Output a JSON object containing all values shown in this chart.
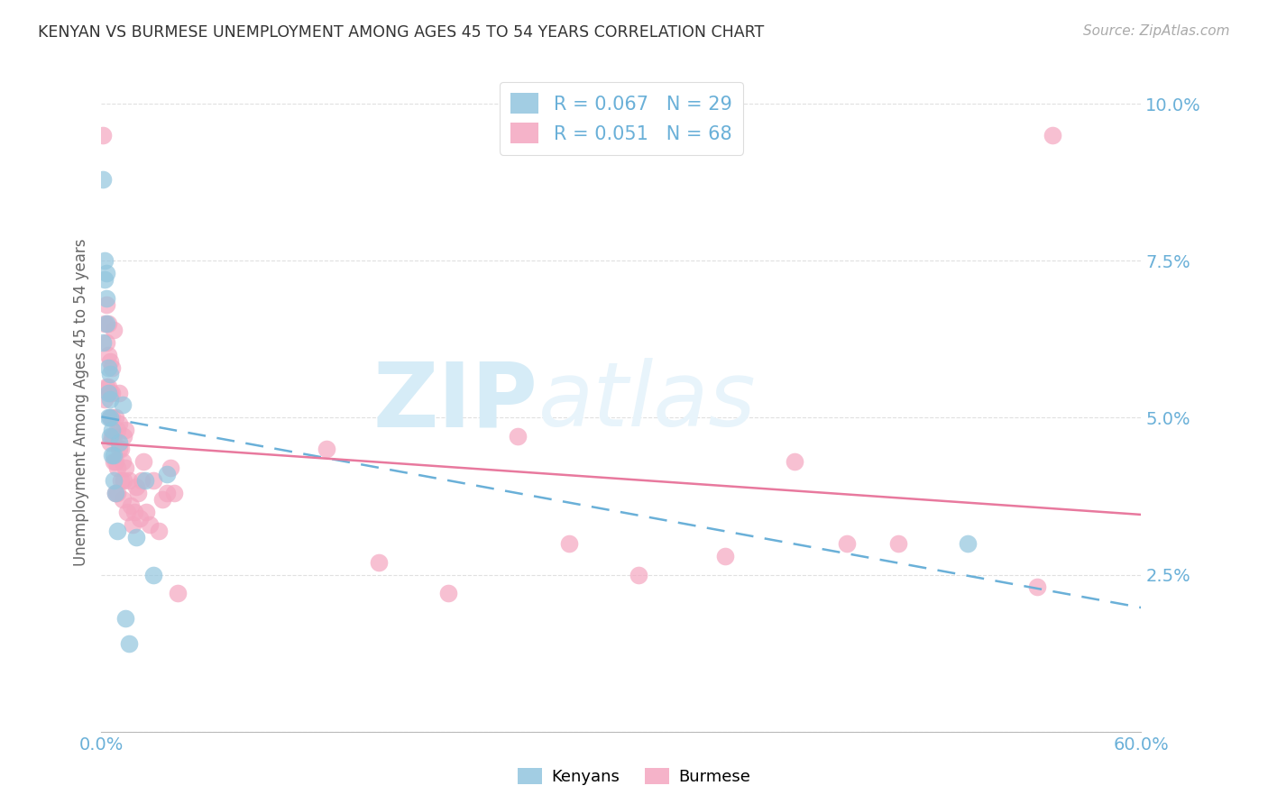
{
  "title": "KENYAN VS BURMESE UNEMPLOYMENT AMONG AGES 45 TO 54 YEARS CORRELATION CHART",
  "source": "Source: ZipAtlas.com",
  "ylabel": "Unemployment Among Ages 45 to 54 years",
  "xmin": 0.0,
  "xmax": 0.6,
  "ymin": 0.0,
  "ymax": 0.105,
  "yticks": [
    0.0,
    0.025,
    0.05,
    0.075,
    0.1
  ],
  "ytick_labels": [
    "",
    "2.5%",
    "5.0%",
    "7.5%",
    "10.0%"
  ],
  "xticks": [
    0.0,
    0.1,
    0.2,
    0.3,
    0.4,
    0.5,
    0.6
  ],
  "xtick_labels": [
    "0.0%",
    "",
    "",
    "",
    "",
    "",
    "60.0%"
  ],
  "legend_r_kenyan": "R = 0.067",
  "legend_n_kenyan": "N = 29",
  "legend_r_burmese": "R = 0.051",
  "legend_n_burmese": "N = 68",
  "kenyan_color": "#92c5de",
  "burmese_color": "#f4a6c0",
  "kenyan_line_color": "#6ab0d8",
  "burmese_line_color": "#e8799e",
  "background_color": "#ffffff",
  "grid_color": "#e0e0e0",
  "watermark_color": "#d6ecf7",
  "title_color": "#333333",
  "axis_label_color": "#666666",
  "tick_label_color": "#6ab0d8",
  "kenyan_x": [
    0.001,
    0.001,
    0.002,
    0.002,
    0.003,
    0.003,
    0.003,
    0.004,
    0.004,
    0.004,
    0.005,
    0.005,
    0.005,
    0.005,
    0.006,
    0.006,
    0.007,
    0.007,
    0.008,
    0.009,
    0.01,
    0.012,
    0.014,
    0.016,
    0.02,
    0.025,
    0.03,
    0.038,
    0.5
  ],
  "kenyan_y": [
    0.088,
    0.062,
    0.072,
    0.075,
    0.065,
    0.069,
    0.073,
    0.05,
    0.054,
    0.058,
    0.047,
    0.05,
    0.053,
    0.057,
    0.044,
    0.048,
    0.04,
    0.044,
    0.038,
    0.032,
    0.046,
    0.052,
    0.018,
    0.014,
    0.031,
    0.04,
    0.025,
    0.041,
    0.03
  ],
  "burmese_x": [
    0.001,
    0.002,
    0.002,
    0.003,
    0.003,
    0.003,
    0.004,
    0.004,
    0.004,
    0.005,
    0.005,
    0.005,
    0.005,
    0.006,
    0.006,
    0.006,
    0.006,
    0.007,
    0.007,
    0.007,
    0.008,
    0.008,
    0.008,
    0.009,
    0.009,
    0.009,
    0.01,
    0.01,
    0.01,
    0.011,
    0.011,
    0.012,
    0.012,
    0.013,
    0.013,
    0.014,
    0.014,
    0.015,
    0.016,
    0.017,
    0.018,
    0.019,
    0.02,
    0.021,
    0.022,
    0.023,
    0.024,
    0.026,
    0.028,
    0.03,
    0.033,
    0.035,
    0.038,
    0.04,
    0.042,
    0.044,
    0.13,
    0.16,
    0.2,
    0.24,
    0.27,
    0.31,
    0.36,
    0.4,
    0.43,
    0.46,
    0.54,
    0.549
  ],
  "burmese_y": [
    0.095,
    0.053,
    0.065,
    0.055,
    0.062,
    0.068,
    0.055,
    0.06,
    0.065,
    0.046,
    0.05,
    0.054,
    0.059,
    0.047,
    0.05,
    0.054,
    0.058,
    0.043,
    0.047,
    0.064,
    0.038,
    0.043,
    0.05,
    0.038,
    0.042,
    0.048,
    0.045,
    0.049,
    0.054,
    0.04,
    0.045,
    0.037,
    0.043,
    0.04,
    0.047,
    0.042,
    0.048,
    0.035,
    0.04,
    0.036,
    0.033,
    0.035,
    0.039,
    0.038,
    0.034,
    0.04,
    0.043,
    0.035,
    0.033,
    0.04,
    0.032,
    0.037,
    0.038,
    0.042,
    0.038,
    0.022,
    0.045,
    0.027,
    0.022,
    0.047,
    0.03,
    0.025,
    0.028,
    0.043,
    0.03,
    0.03,
    0.023,
    0.095
  ]
}
